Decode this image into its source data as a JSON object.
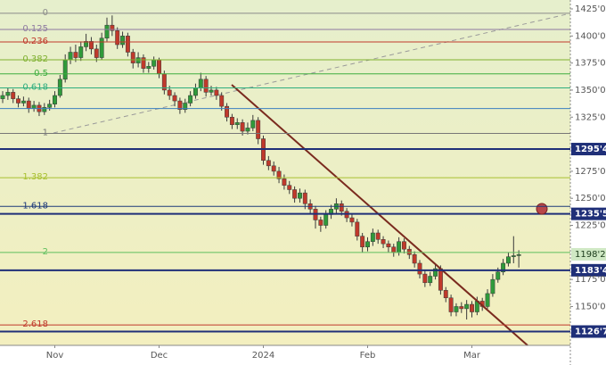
{
  "chart_data": {
    "type": "candlestick",
    "categories": [
      null,
      null,
      null,
      null,
      null,
      null,
      null,
      null,
      null,
      null,
      "Nov",
      null,
      null,
      null,
      null,
      null,
      null,
      null,
      null,
      null,
      null,
      null,
      null,
      null,
      null,
      null,
      null,
      null,
      null,
      null,
      "Dec",
      null,
      null,
      null,
      null,
      null,
      null,
      null,
      null,
      null,
      null,
      null,
      null,
      null,
      null,
      null,
      null,
      null,
      null,
      null,
      "2024",
      null,
      null,
      null,
      null,
      null,
      null,
      null,
      null,
      null,
      null,
      null,
      null,
      null,
      null,
      null,
      null,
      null,
      null,
      null,
      "Feb",
      null,
      null,
      null,
      null,
      null,
      null,
      null,
      null,
      null,
      null,
      null,
      null,
      null,
      null,
      null,
      null,
      null,
      null,
      null,
      "Mar",
      null,
      null,
      null,
      null,
      null,
      null,
      null,
      null,
      null
    ],
    "open": [
      1342,
      1345,
      1348,
      1342,
      1338,
      1340,
      1333,
      1336,
      1330,
      1334,
      1337,
      1345,
      1360,
      1378,
      1385,
      1380,
      1390,
      1395,
      1388,
      1380,
      1398,
      1410,
      1405,
      1392,
      1400,
      1385,
      1375,
      1380,
      1370,
      1372,
      1378,
      1365,
      1350,
      1345,
      1340,
      1332,
      1338,
      1345,
      1352,
      1360,
      1348,
      1350,
      1345,
      1335,
      1325,
      1318,
      1320,
      1312,
      1315,
      1322,
      1305,
      1285,
      1280,
      1275,
      1268,
      1262,
      1258,
      1250,
      1255,
      1245,
      1240,
      1230,
      1225,
      1235,
      1240,
      1245,
      1238,
      1232,
      1228,
      1215,
      1205,
      1210,
      1218,
      1212,
      1208,
      1205,
      1200,
      1210,
      1203,
      1198,
      1190,
      1180,
      1172,
      1178,
      1185,
      1165,
      1158,
      1145,
      1150,
      1148,
      1152,
      1145,
      1155,
      1150,
      1162,
      1175,
      1182,
      1190,
      1196,
      1197
    ],
    "high": [
      1349,
      1352,
      1351,
      1345,
      1344,
      1343,
      1340,
      1339,
      1338,
      1341,
      1349,
      1364,
      1383,
      1390,
      1392,
      1395,
      1402,
      1399,
      1392,
      1403,
      1417,
      1419,
      1408,
      1404,
      1403,
      1388,
      1385,
      1383,
      1376,
      1381,
      1380,
      1368,
      1354,
      1348,
      1343,
      1342,
      1349,
      1356,
      1366,
      1363,
      1354,
      1353,
      1348,
      1338,
      1328,
      1324,
      1323,
      1320,
      1327,
      1325,
      1308,
      1289,
      1284,
      1279,
      1272,
      1266,
      1261,
      1259,
      1258,
      1249,
      1243,
      1233,
      1239,
      1244,
      1250,
      1248,
      1241,
      1236,
      1231,
      1218,
      1214,
      1222,
      1221,
      1215,
      1211,
      1208,
      1214,
      1213,
      1206,
      1201,
      1193,
      1184,
      1182,
      1189,
      1188,
      1168,
      1161,
      1153,
      1154,
      1156,
      1155,
      1159,
      1158,
      1166,
      1180,
      1186,
      1194,
      1200,
      1215,
      1202
    ],
    "low": [
      1338,
      1341,
      1338,
      1334,
      1335,
      1329,
      1330,
      1326,
      1327,
      1331,
      1334,
      1343,
      1357,
      1374,
      1376,
      1377,
      1386,
      1383,
      1376,
      1378,
      1395,
      1400,
      1388,
      1389,
      1381,
      1370,
      1371,
      1366,
      1366,
      1369,
      1361,
      1346,
      1341,
      1335,
      1328,
      1329,
      1335,
      1342,
      1349,
      1344,
      1345,
      1341,
      1331,
      1321,
      1314,
      1314,
      1308,
      1309,
      1312,
      1300,
      1281,
      1276,
      1271,
      1264,
      1258,
      1254,
      1246,
      1246,
      1240,
      1235,
      1222,
      1219,
      1222,
      1231,
      1236,
      1234,
      1228,
      1224,
      1211,
      1200,
      1201,
      1206,
      1208,
      1204,
      1200,
      1196,
      1197,
      1199,
      1194,
      1186,
      1176,
      1168,
      1169,
      1175,
      1161,
      1154,
      1141,
      1141,
      1144,
      1138,
      1140,
      1142,
      1146,
      1148,
      1159,
      1172,
      1179,
      1187,
      1190,
      1186
    ],
    "close": [
      1345,
      1348,
      1342,
      1338,
      1340,
      1333,
      1336,
      1330,
      1334,
      1337,
      1345,
      1360,
      1378,
      1385,
      1380,
      1390,
      1395,
      1388,
      1380,
      1398,
      1410,
      1405,
      1392,
      1400,
      1385,
      1375,
      1380,
      1370,
      1372,
      1378,
      1365,
      1350,
      1345,
      1340,
      1332,
      1338,
      1345,
      1352,
      1360,
      1348,
      1350,
      1345,
      1335,
      1325,
      1318,
      1320,
      1312,
      1315,
      1322,
      1305,
      1285,
      1280,
      1275,
      1268,
      1262,
      1258,
      1250,
      1255,
      1245,
      1240,
      1230,
      1225,
      1235,
      1240,
      1245,
      1238,
      1232,
      1228,
      1215,
      1205,
      1210,
      1218,
      1212,
      1208,
      1205,
      1200,
      1210,
      1203,
      1198,
      1190,
      1180,
      1172,
      1178,
      1185,
      1165,
      1158,
      1145,
      1150,
      1148,
      1152,
      1145,
      1155,
      1150,
      1162,
      1175,
      1182,
      1190,
      1196,
      1197,
      1198
    ],
    "up_color": "#2f9a3a",
    "down_color": "#c0392b",
    "ylim": [
      1114.1,
      1433.25
    ],
    "yticks": [
      {
        "value": 1425,
        "label": "1425'0"
      },
      {
        "value": 1400,
        "label": "1400'0"
      },
      {
        "value": 1375,
        "label": "1375'0"
      },
      {
        "value": 1350,
        "label": "1350'0"
      },
      {
        "value": 1325,
        "label": "1325'0"
      },
      {
        "value": 1275,
        "label": "1275'0"
      },
      {
        "value": 1250,
        "label": "1250'0"
      },
      {
        "value": 1225,
        "label": "1225'0"
      },
      {
        "value": 1175,
        "label": "1175'0"
      },
      {
        "value": 1150,
        "label": "1150'0"
      }
    ],
    "fib_levels": [
      {
        "label": "0",
        "value": 1421,
        "color": "#8a8a8a"
      },
      {
        "label": "0.125",
        "value": 1406,
        "color": "#8e7aa0"
      },
      {
        "label": "0.236",
        "value": 1394.5,
        "color": "#c0392b"
      },
      {
        "label": "0.382",
        "value": 1378,
        "color": "#7fb030"
      },
      {
        "label": "0.5",
        "value": 1365,
        "color": "#3fae3f"
      },
      {
        "label": "0.618",
        "value": 1352,
        "color": "#2fae7f"
      },
      {
        "label": null,
        "value": 1333,
        "color": "#3a7fc0"
      },
      {
        "label": "1",
        "value": 1310,
        "color": "#777777"
      },
      {
        "label": "1.382",
        "value": 1269,
        "color": "#a8c030"
      },
      {
        "label": "1.618",
        "value": 1242.5,
        "color": "#1f3a7a"
      },
      {
        "label": "2",
        "value": 1200,
        "color": "#5fbf5f"
      },
      {
        "label": "2.618",
        "value": 1133,
        "color": "#c0392b"
      }
    ],
    "key_levels": [
      {
        "value": 1295.5,
        "label": "1295'4"
      },
      {
        "value": 1235.625,
        "label": "1235'5"
      },
      {
        "value": 1183.5,
        "label": "1183'4"
      },
      {
        "value": 1126.875,
        "label": "1126'7"
      }
    ],
    "last_price": {
      "value": 1198.25,
      "label": "1198'2"
    }
  }
}
